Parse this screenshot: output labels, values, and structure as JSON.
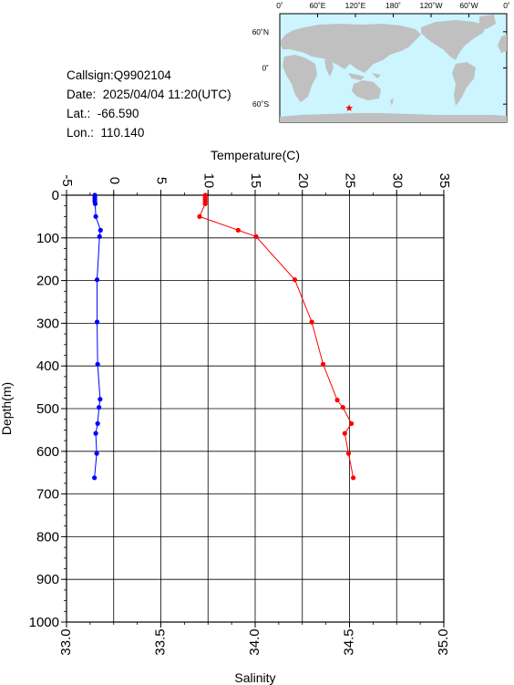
{
  "station": {
    "callsign": "Callsign:Q9902104",
    "date": "Date:  2025/04/04 11:20(UTC)",
    "lat": "Lat.:  -66.590",
    "lon": "Lon.:  110.140"
  },
  "map": {
    "top_labels": [
      "0˚",
      "60˚E",
      "120˚E",
      "180˚",
      "120˚W",
      "60˚W",
      "0˚"
    ],
    "right_labels": [
      "60˚N",
      "0˚",
      "60˚S"
    ],
    "ocean_color": "#ccf5ff",
    "land_color": "#c0c0c0",
    "marker": {
      "lon": 110.14,
      "lat": -66.59,
      "color": "#ff0000"
    }
  },
  "chart_data": {
    "type": "line",
    "top_axis": {
      "label": "Temperature(C)",
      "range": [
        -5,
        35
      ],
      "ticks": [
        "-5",
        "0",
        "5",
        "10",
        "15",
        "20",
        "25",
        "30",
        "35"
      ]
    },
    "bottom_axis": {
      "label": "Salinity",
      "range": [
        33.0,
        35.0
      ],
      "ticks": [
        "33.0",
        "33.5",
        "34.0",
        "34.5",
        "35.0"
      ]
    },
    "y_axis": {
      "label": "Depth(m)",
      "range": [
        0,
        1000
      ],
      "inverted": true,
      "ticks": [
        "0",
        "100",
        "200",
        "300",
        "400",
        "500",
        "600",
        "700",
        "800",
        "900",
        "1000"
      ]
    },
    "grid": true,
    "series": [
      {
        "quantity": "temperature",
        "color": "#ff0000",
        "axis": "top",
        "points": [
          {
            "depth": 0,
            "value": 9.7
          },
          {
            "depth": 5,
            "value": 9.7
          },
          {
            "depth": 10,
            "value": 9.7
          },
          {
            "depth": 15,
            "value": 9.7
          },
          {
            "depth": 20,
            "value": 9.7
          },
          {
            "depth": 50,
            "value": 9.1
          },
          {
            "depth": 82,
            "value": 13.2
          },
          {
            "depth": 97,
            "value": 15.1
          },
          {
            "depth": 198,
            "value": 19.2
          },
          {
            "depth": 297,
            "value": 21.0
          },
          {
            "depth": 396,
            "value": 22.2
          },
          {
            "depth": 480,
            "value": 23.7
          },
          {
            "depth": 497,
            "value": 24.3
          },
          {
            "depth": 535,
            "value": 25.2
          },
          {
            "depth": 558,
            "value": 24.5
          },
          {
            "depth": 605,
            "value": 24.9
          },
          {
            "depth": 662,
            "value": 25.4
          }
        ]
      },
      {
        "quantity": "salinity",
        "color": "#0000ff",
        "axis": "bottom",
        "points": [
          {
            "depth": 0,
            "value": 33.15
          },
          {
            "depth": 5,
            "value": 33.15
          },
          {
            "depth": 10,
            "value": 33.15
          },
          {
            "depth": 15,
            "value": 33.15
          },
          {
            "depth": 20,
            "value": 33.152
          },
          {
            "depth": 50,
            "value": 33.155
          },
          {
            "depth": 82,
            "value": 33.18
          },
          {
            "depth": 97,
            "value": 33.175
          },
          {
            "depth": 198,
            "value": 33.162
          },
          {
            "depth": 297,
            "value": 33.162
          },
          {
            "depth": 396,
            "value": 33.165
          },
          {
            "depth": 478,
            "value": 33.178
          },
          {
            "depth": 497,
            "value": 33.172
          },
          {
            "depth": 535,
            "value": 33.165
          },
          {
            "depth": 558,
            "value": 33.155
          },
          {
            "depth": 605,
            "value": 33.16
          },
          {
            "depth": 662,
            "value": 33.148
          }
        ]
      }
    ]
  }
}
